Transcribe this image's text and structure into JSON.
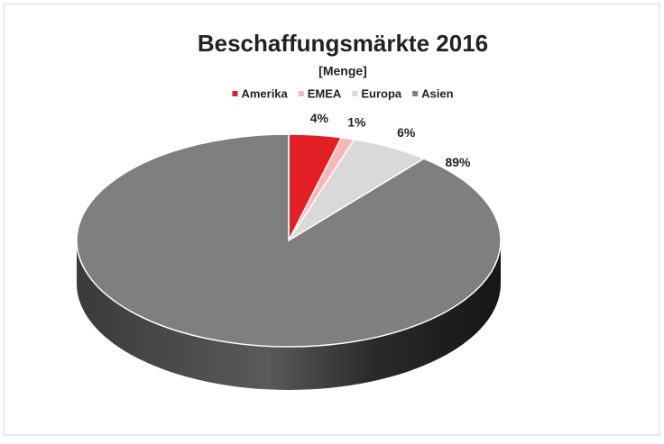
{
  "chart_data": {
    "type": "pie3d",
    "title": "Beschaffungsmärkte 2016",
    "subtitle": "[Menge]",
    "categories": [
      "Amerika",
      "EMEA",
      "Europa",
      "Asien"
    ],
    "values": [
      4,
      1,
      6,
      89
    ],
    "value_labels": [
      "4%",
      "1%",
      "6%",
      "89%"
    ],
    "colors": [
      "#e31e24",
      "#f4b8b8",
      "#d9d9d9",
      "#7f7f7f"
    ],
    "legend": "top"
  }
}
